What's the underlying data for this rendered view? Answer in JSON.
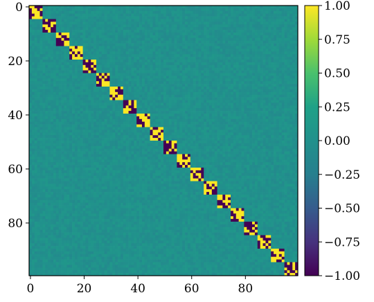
{
  "chart_data": {
    "type": "heatmap",
    "title": "",
    "xlabel": "",
    "ylabel": "",
    "matrix_size": 100,
    "block_size": 5,
    "num_blocks": 20,
    "diagonal_blocks": [
      {
        "index": 0,
        "rows": [
          0,
          4
        ],
        "cols": [
          0,
          4
        ],
        "dominant": "mixed"
      },
      {
        "index": 1,
        "rows": [
          5,
          9
        ],
        "cols": [
          5,
          9
        ],
        "dominant": "mixed"
      },
      {
        "index": 2,
        "rows": [
          10,
          14
        ],
        "cols": [
          10,
          14
        ],
        "dominant": "mixed"
      },
      {
        "index": 3,
        "rows": [
          15,
          19
        ],
        "cols": [
          15,
          19
        ],
        "dominant": "mixed"
      },
      {
        "index": 4,
        "rows": [
          20,
          24
        ],
        "cols": [
          20,
          24
        ],
        "dominant": "mixed"
      },
      {
        "index": 5,
        "rows": [
          25,
          29
        ],
        "cols": [
          25,
          29
        ],
        "dominant": "mixed"
      },
      {
        "index": 6,
        "rows": [
          30,
          34
        ],
        "cols": [
          30,
          34
        ],
        "dominant": "mixed"
      },
      {
        "index": 7,
        "rows": [
          35,
          39
        ],
        "cols": [
          35,
          39
        ],
        "dominant": "mixed"
      },
      {
        "index": 8,
        "rows": [
          40,
          44
        ],
        "cols": [
          40,
          44
        ],
        "dominant": "mixed"
      },
      {
        "index": 9,
        "rows": [
          45,
          49
        ],
        "cols": [
          45,
          49
        ],
        "dominant": "mixed"
      },
      {
        "index": 10,
        "rows": [
          50,
          54
        ],
        "cols": [
          50,
          54
        ],
        "dominant": "mixed"
      },
      {
        "index": 11,
        "rows": [
          55,
          59
        ],
        "cols": [
          55,
          59
        ],
        "dominant": "mixed"
      },
      {
        "index": 12,
        "rows": [
          60,
          64
        ],
        "cols": [
          60,
          64
        ],
        "dominant": "mixed"
      },
      {
        "index": 13,
        "rows": [
          65,
          69
        ],
        "cols": [
          65,
          69
        ],
        "dominant": "mixed"
      },
      {
        "index": 14,
        "rows": [
          70,
          74
        ],
        "cols": [
          70,
          74
        ],
        "dominant": "mixed"
      },
      {
        "index": 15,
        "rows": [
          75,
          79
        ],
        "cols": [
          75,
          79
        ],
        "dominant": "mixed"
      },
      {
        "index": 16,
        "rows": [
          80,
          84
        ],
        "cols": [
          80,
          84
        ],
        "dominant": "mixed"
      },
      {
        "index": 17,
        "rows": [
          85,
          89
        ],
        "cols": [
          85,
          89
        ],
        "dominant": "mixed"
      },
      {
        "index": 18,
        "rows": [
          90,
          94
        ],
        "cols": [
          90,
          94
        ],
        "dominant": "mixed"
      },
      {
        "index": 19,
        "rows": [
          95,
          99
        ],
        "cols": [
          95,
          99
        ],
        "dominant": "mixed"
      }
    ],
    "off_diagonal_value_range": [
      -0.1,
      0.1
    ],
    "diagonal_block_values": [
      -1.0,
      1.0
    ],
    "x_ticks": [
      0,
      20,
      40,
      60,
      80
    ],
    "x_tick_labels": [
      "0",
      "20",
      "40",
      "60",
      "80"
    ],
    "y_ticks": [
      0,
      20,
      40,
      60,
      80
    ],
    "y_tick_labels": [
      "0",
      "20",
      "40",
      "60",
      "80"
    ],
    "colorbar": {
      "colormap": "viridis",
      "range": [
        -1.0,
        1.0
      ],
      "ticks": [
        1.0,
        0.75,
        0.5,
        0.25,
        0.0,
        -0.25,
        -0.5,
        -0.75,
        -1.0
      ],
      "tick_labels": [
        "1.00",
        "0.75",
        "0.50",
        "0.25",
        "0.00",
        "−0.25",
        "−0.50",
        "−0.75",
        "−1.00"
      ]
    },
    "grid": false,
    "legend": "none"
  },
  "colors": {
    "viridis_min": "#440154",
    "viridis_mid": "#21918c",
    "viridis_max": "#fde725",
    "background_noise": "#21918c"
  }
}
